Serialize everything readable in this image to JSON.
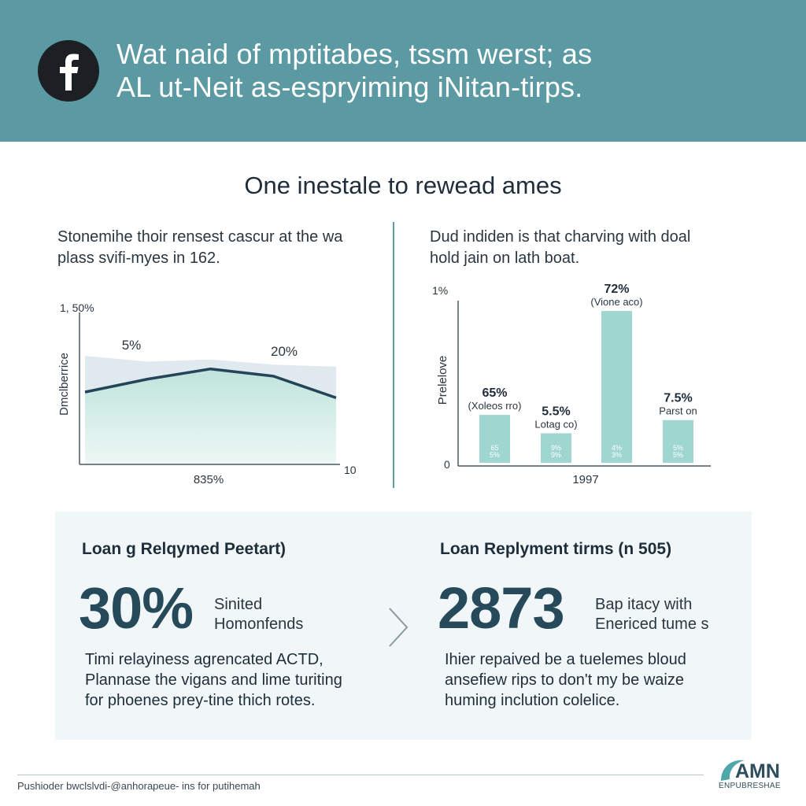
{
  "header": {
    "logo_icon": "facebook-logo-icon",
    "title_line1": "Wat naid of mptitabes, tssm werst; as",
    "title_line2": "AL ut-Neit as-espryiming iNitan-tirps."
  },
  "section_title": "One inestale to rewead ames",
  "left_chart": {
    "description_line1": "Stonemihe thoir rensest cascur at the wa",
    "description_line2": "plass svifi-myes in 162."
  },
  "right_chart": {
    "description_line1": "Dud indiden is that charving with doal",
    "description_line2": "hold jain on lath boat."
  },
  "chart_data": [
    {
      "type": "area",
      "ylabel": "Dmclberrice",
      "xlabel": "835%",
      "y_top_label": "1, 50%",
      "x_end_label": "10",
      "data_labels": [
        "5%",
        "20%"
      ],
      "series": [
        {
          "values": [
            1,
            1.18,
            1.32,
            1.22,
            0.92
          ]
        }
      ],
      "band_values": [
        1.5,
        1.42,
        1.45,
        1.38,
        1.35
      ],
      "ylim": [
        0,
        2.1
      ],
      "grid": false
    },
    {
      "type": "bar",
      "ylabel": "Prelelove",
      "xlabel": "1997",
      "y_top_label": "1%",
      "y_zero_label": "0",
      "bars": [
        {
          "value": 65,
          "label": "65%",
          "sublabel": "(Xoleos rro)",
          "inner_top": "65",
          "inner_bottom": "5%"
        },
        {
          "value": 40,
          "label": "5.5%",
          "sublabel": "Lotag co)",
          "inner_top": "9%",
          "inner_bottom": "9%"
        },
        {
          "value": 206,
          "label": "72%",
          "sublabel": "(Vione aco)",
          "inner_top": "4%",
          "inner_bottom": "3%"
        },
        {
          "value": 58,
          "label": "7.5%",
          "sublabel": "Parst on",
          "inner_top": "5%",
          "inner_bottom": "5%"
        }
      ],
      "ylim": [
        0,
        220
      ],
      "bar_color": "#9fd7d0",
      "grid": false
    }
  ],
  "stats_left": {
    "title": "Loan g Relqymed Peetart)",
    "value": "30%",
    "label_line1": "Sinited",
    "label_line2": "Homonfends",
    "body_line1": "Timi relayiness agrencated ACTD,",
    "body_line2": "Plannase the vigans and lime turiting",
    "body_line3": "for phoenes prey-tine thich rotes."
  },
  "stats_right": {
    "title": "Loan Replyment tirms (n 505)",
    "value": "2873",
    "label_line1": "Bap itacy with",
    "label_line2": "Enericed tume s",
    "body_line1": "Ihier repaived be a tuelemes bloud",
    "body_line2": "ansefiew rips to don't my be waize",
    "body_line3": "huming inclution colelice."
  },
  "footer": {
    "text": "Pushioder bwclslvdi-@anhorapeue- ins for putihemah",
    "brand_name": "AMN",
    "brand_sub": "ENPUBRESHAE"
  },
  "colors": {
    "header_bg": "#5b9aa3",
    "accent_dark": "#264a5a",
    "bar_fill": "#9fd7d0",
    "panel_bg": "#f1f7f8"
  }
}
